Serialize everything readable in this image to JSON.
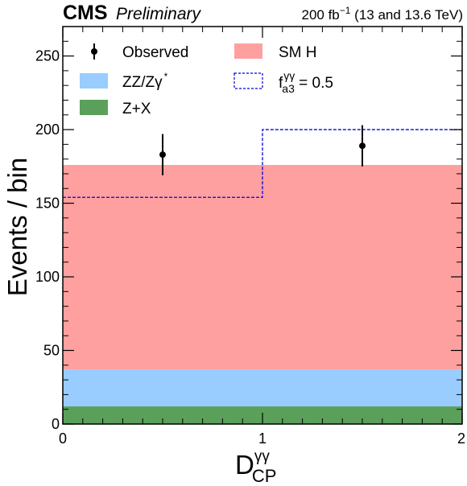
{
  "header": {
    "experiment": "CMS",
    "status": "Preliminary",
    "lumi_prefix": "200 fb",
    "lumi_exp": "−1",
    "lumi_suffix": " (13 and 13.6 TeV)"
  },
  "chart_data": {
    "type": "bar",
    "stacked": true,
    "xlabel_main": "D",
    "xlabel_sup": "γγ",
    "xlabel_sub": "CP",
    "ylabel": "Events / bin",
    "xlim": [
      0,
      2
    ],
    "ylim": [
      0,
      270
    ],
    "bin_edges": [
      0,
      1,
      2
    ],
    "x_ticks": [
      0,
      1,
      2
    ],
    "y_ticks": [
      0,
      50,
      100,
      150,
      200,
      250
    ],
    "series": [
      {
        "name": "Z+X",
        "values": [
          12,
          12
        ],
        "color": "#5aa05a"
      },
      {
        "name": "ZZ/Zγ*",
        "values": [
          25,
          25
        ],
        "color": "#99ccff"
      },
      {
        "name": "SM H",
        "values": [
          139,
          139
        ],
        "color": "#ffa0a0"
      }
    ],
    "alternative": {
      "name": "f_a3^γγ = 0.5",
      "values": [
        154,
        200
      ],
      "color": "#0000dd",
      "style": "dashed"
    },
    "observed": {
      "name": "Observed",
      "x": [
        0.5,
        1.5
      ],
      "y": [
        183,
        189
      ],
      "err": [
        14,
        14
      ]
    }
  },
  "legend": {
    "observed": "Observed",
    "smh": "SM H",
    "zz_main": "ZZ/Zγ",
    "zz_sup": "*",
    "zx": "Z+X",
    "alt_f": "f",
    "alt_sub": "a3",
    "alt_sup": "γγ",
    "alt_value": " = 0.5"
  }
}
